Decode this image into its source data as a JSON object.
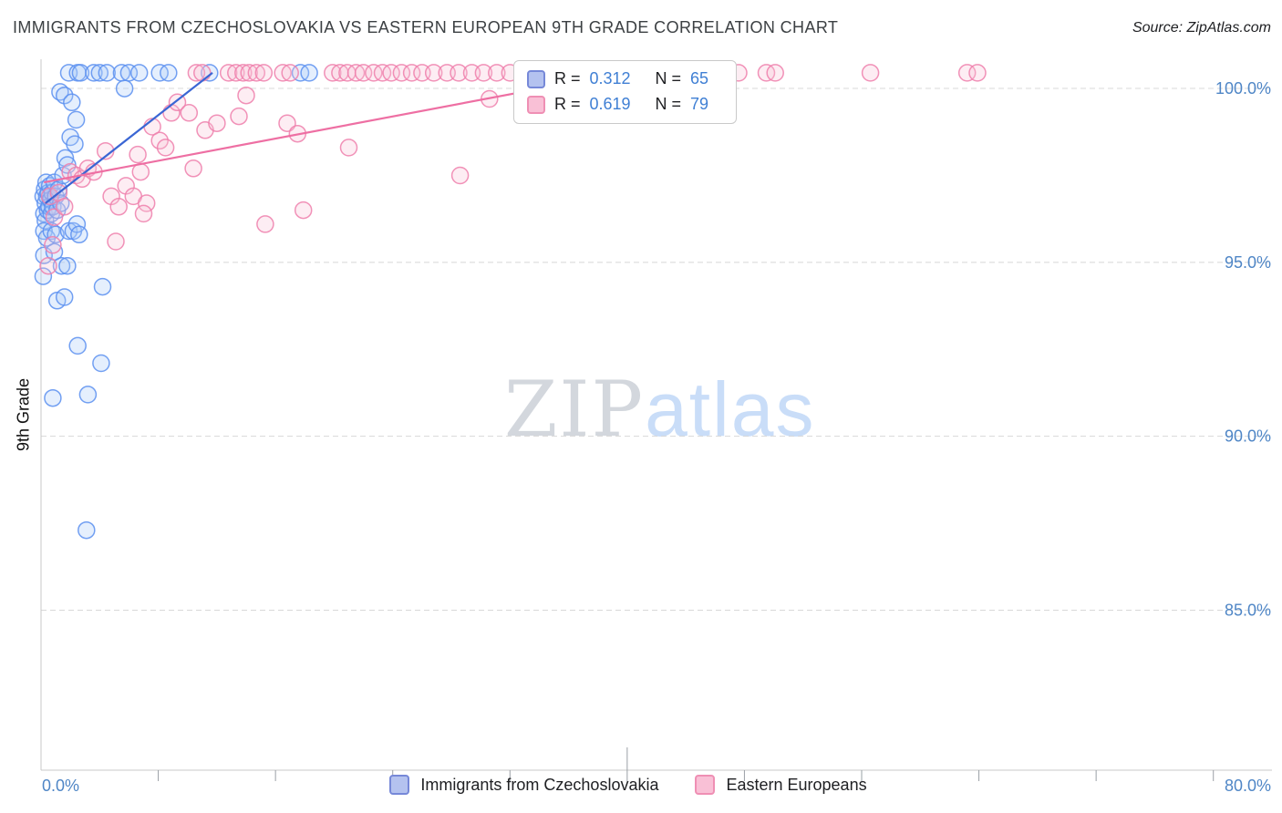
{
  "chart_data": {
    "type": "scatter",
    "title": "IMMIGRANTS FROM CZECHOSLOVAKIA VS EASTERN EUROPEAN 9TH GRADE CORRELATION CHART",
    "source": "Source: ZipAtlas.com",
    "ylabel": "9th Grade",
    "watermark": {
      "part1": "ZIP",
      "part2": "atlas"
    },
    "x_axis": {
      "min_label": "0.0%",
      "max_label": "80.0%",
      "xlim": [
        0,
        84
      ],
      "ticks": [
        8,
        16,
        24,
        32,
        40,
        48,
        56,
        64,
        72,
        80
      ],
      "tall_tick": 40
    },
    "y_axis": {
      "ylim": [
        80.4,
        100.84
      ],
      "gridlines": [
        {
          "value": 100,
          "label": "100.0%"
        },
        {
          "value": 95,
          "label": "95.0%"
        },
        {
          "value": 90,
          "label": "90.0%"
        },
        {
          "value": 85,
          "label": "85.0%"
        }
      ]
    },
    "stats": [
      {
        "r_label": "R =",
        "r_value": "0.312",
        "n_label": "N =",
        "n_value": "65"
      },
      {
        "r_label": "R =",
        "r_value": "0.619",
        "n_label": "N =",
        "n_value": "79"
      }
    ],
    "legend": [
      {
        "label": "Immigrants from Czechoslovakia"
      },
      {
        "label": "Eastern Europeans"
      }
    ],
    "colors": {
      "axis_label": "#4f86c6",
      "grid": "#d8d8d8",
      "axis_line": "#c8c8c8",
      "tick": "#9aa0a6"
    },
    "series": [
      {
        "name": "Immigrants from Czechoslovakia",
        "id": "czechoslovakia",
        "stroke": "#5b8ff0",
        "fill": "#aacbf8",
        "trend_color": "#3a66d4",
        "trend": {
          "x1": 0.3,
          "y1": 96.7,
          "x2": 11.7,
          "y2": 100.45
        },
        "points": [
          [
            1.9,
            100.45
          ],
          [
            2.5,
            100.45
          ],
          [
            2.7,
            100.45
          ],
          [
            3.6,
            100.45
          ],
          [
            4.0,
            100.45
          ],
          [
            4.5,
            100.45
          ],
          [
            5.5,
            100.45
          ],
          [
            6.0,
            100.45
          ],
          [
            6.7,
            100.45
          ],
          [
            8.1,
            100.45
          ],
          [
            8.7,
            100.45
          ],
          [
            11.5,
            100.45
          ],
          [
            17.7,
            100.45
          ],
          [
            18.3,
            100.45
          ],
          [
            1.3,
            99.9
          ],
          [
            1.6,
            99.8
          ],
          [
            2.1,
            99.6
          ],
          [
            5.7,
            100.0
          ],
          [
            2.4,
            99.1
          ],
          [
            2.0,
            98.6
          ],
          [
            2.3,
            98.4
          ],
          [
            0.15,
            96.9
          ],
          [
            0.2,
            96.4
          ],
          [
            0.25,
            97.1
          ],
          [
            0.3,
            96.7
          ],
          [
            0.3,
            96.2
          ],
          [
            0.35,
            97.3
          ],
          [
            0.4,
            96.9
          ],
          [
            0.45,
            96.5
          ],
          [
            0.5,
            97.0
          ],
          [
            0.55,
            96.6
          ],
          [
            0.6,
            97.2
          ],
          [
            0.65,
            96.8
          ],
          [
            0.7,
            96.4
          ],
          [
            0.75,
            97.0
          ],
          [
            0.8,
            96.6
          ],
          [
            0.9,
            97.3
          ],
          [
            1.0,
            96.9
          ],
          [
            1.1,
            96.5
          ],
          [
            1.2,
            97.1
          ],
          [
            1.35,
            96.7
          ],
          [
            1.5,
            97.5
          ],
          [
            1.65,
            98.0
          ],
          [
            1.8,
            97.8
          ],
          [
            0.2,
            95.9
          ],
          [
            0.4,
            95.7
          ],
          [
            0.7,
            95.9
          ],
          [
            1.0,
            95.8
          ],
          [
            1.9,
            95.9
          ],
          [
            2.2,
            95.9
          ],
          [
            2.45,
            96.1
          ],
          [
            2.6,
            95.8
          ],
          [
            0.2,
            95.2
          ],
          [
            0.9,
            95.3
          ],
          [
            1.4,
            94.9
          ],
          [
            1.8,
            94.9
          ],
          [
            0.15,
            94.6
          ],
          [
            1.1,
            93.9
          ],
          [
            1.6,
            94.0
          ],
          [
            4.2,
            94.3
          ],
          [
            2.5,
            92.6
          ],
          [
            4.1,
            92.1
          ],
          [
            3.2,
            91.2
          ],
          [
            0.8,
            91.1
          ],
          [
            3.1,
            87.3
          ]
        ]
      },
      {
        "name": "Eastern Europeans",
        "id": "eastern-europeans",
        "stroke": "#ef7fab",
        "fill": "#f9c4d8",
        "trend_color": "#ee6fa3",
        "trend": {
          "x1": 0.2,
          "y1": 97.3,
          "x2": 38.5,
          "y2": 100.35
        },
        "points": [
          [
            10.6,
            100.45
          ],
          [
            11.0,
            100.45
          ],
          [
            12.8,
            100.45
          ],
          [
            13.3,
            100.45
          ],
          [
            13.8,
            100.45
          ],
          [
            14.2,
            100.45
          ],
          [
            14.7,
            100.45
          ],
          [
            15.2,
            100.45
          ],
          [
            16.5,
            100.45
          ],
          [
            17.0,
            100.45
          ],
          [
            19.9,
            100.45
          ],
          [
            20.4,
            100.45
          ],
          [
            20.9,
            100.45
          ],
          [
            21.5,
            100.45
          ],
          [
            22.0,
            100.45
          ],
          [
            22.7,
            100.45
          ],
          [
            23.3,
            100.45
          ],
          [
            23.9,
            100.45
          ],
          [
            24.6,
            100.45
          ],
          [
            25.3,
            100.45
          ],
          [
            26.0,
            100.45
          ],
          [
            26.8,
            100.45
          ],
          [
            27.7,
            100.45
          ],
          [
            28.5,
            100.45
          ],
          [
            29.4,
            100.45
          ],
          [
            30.2,
            100.45
          ],
          [
            31.1,
            100.45
          ],
          [
            32.0,
            100.45
          ],
          [
            33.0,
            100.45
          ],
          [
            34.0,
            100.45
          ],
          [
            35.0,
            100.45
          ],
          [
            38.3,
            100.45
          ],
          [
            39.5,
            100.45
          ],
          [
            40.8,
            100.45
          ],
          [
            47.6,
            100.45
          ],
          [
            49.5,
            100.45
          ],
          [
            50.1,
            100.45
          ],
          [
            56.6,
            100.45
          ],
          [
            63.2,
            100.45
          ],
          [
            63.9,
            100.45
          ],
          [
            14.0,
            99.8
          ],
          [
            16.8,
            99.0
          ],
          [
            13.5,
            99.2
          ],
          [
            11.2,
            98.8
          ],
          [
            12.0,
            99.0
          ],
          [
            8.9,
            99.3
          ],
          [
            9.3,
            99.6
          ],
          [
            10.1,
            99.3
          ],
          [
            7.6,
            98.9
          ],
          [
            8.1,
            98.5
          ],
          [
            8.5,
            98.3
          ],
          [
            17.5,
            98.7
          ],
          [
            21.0,
            98.3
          ],
          [
            0.6,
            96.9
          ],
          [
            0.9,
            96.3
          ],
          [
            1.2,
            97.0
          ],
          [
            1.6,
            96.6
          ],
          [
            2.0,
            97.6
          ],
          [
            2.4,
            97.5
          ],
          [
            2.8,
            97.4
          ],
          [
            3.2,
            97.7
          ],
          [
            3.6,
            97.6
          ],
          [
            4.4,
            98.2
          ],
          [
            4.8,
            96.9
          ],
          [
            5.3,
            96.6
          ],
          [
            5.8,
            97.2
          ],
          [
            6.3,
            96.9
          ],
          [
            6.8,
            97.6
          ],
          [
            7.2,
            96.7
          ],
          [
            7.0,
            96.4
          ],
          [
            5.1,
            95.6
          ],
          [
            10.4,
            97.7
          ],
          [
            17.9,
            96.5
          ],
          [
            15.3,
            96.1
          ],
          [
            28.6,
            97.5
          ],
          [
            0.8,
            95.5
          ],
          [
            0.5,
            94.9
          ],
          [
            6.6,
            98.1
          ],
          [
            30.6,
            99.7
          ]
        ]
      }
    ]
  }
}
